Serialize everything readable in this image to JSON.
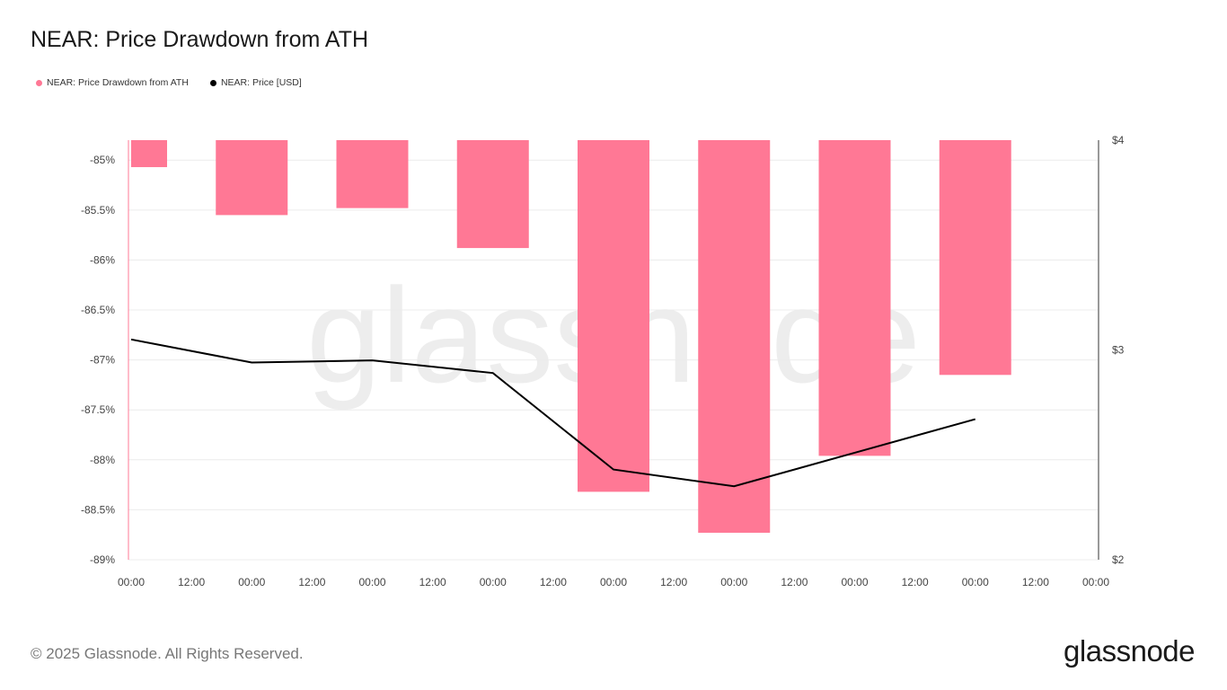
{
  "title": "NEAR: Price Drawdown from ATH",
  "legend": {
    "drawdown_label": "NEAR: Price Drawdown from ATH",
    "price_label": "NEAR: Price [USD]"
  },
  "watermark": "glassnode",
  "footer": {
    "copyright": "© 2025 Glassnode. All Rights Reserved.",
    "logo": "glassnode"
  },
  "colors": {
    "drawdown": "#ff7895",
    "price": "#000000"
  },
  "chart_data": {
    "type": "bar+line",
    "x_tick_labels": [
      "00:00",
      "12:00",
      "00:00",
      "12:00",
      "00:00",
      "12:00",
      "00:00",
      "12:00",
      "00:00",
      "12:00",
      "00:00",
      "12:00",
      "00:00",
      "12:00",
      "00:00",
      "12:00",
      "00:00"
    ],
    "left_axis": {
      "ylim": [
        -89,
        -84.8
      ],
      "ticks": [
        -85,
        -85.5,
        -86,
        -86.5,
        -87,
        -87.5,
        -88,
        -88.5,
        -89
      ],
      "tick_labels": [
        "-85%",
        "-85.5%",
        "-86%",
        "-86.5%",
        "-87%",
        "-87.5%",
        "-88%",
        "-88.5%",
        "-89%"
      ]
    },
    "right_axis": {
      "ylim": [
        2,
        4
      ],
      "ticks": [
        4,
        3,
        2
      ],
      "tick_labels": [
        "$4",
        "$3",
        "$2"
      ]
    },
    "series": [
      {
        "name": "NEAR: Price Drawdown from ATH",
        "kind": "bar",
        "axis": "left",
        "values": [
          -85.07,
          -85.55,
          -85.48,
          -85.88,
          -88.32,
          -88.73,
          -87.96,
          -87.15
        ]
      },
      {
        "name": "NEAR: Price [USD]",
        "kind": "line",
        "axis": "right",
        "values": [
          3.05,
          2.94,
          2.95,
          2.89,
          2.43,
          2.35,
          2.51,
          2.67
        ]
      }
    ],
    "grid": true
  }
}
